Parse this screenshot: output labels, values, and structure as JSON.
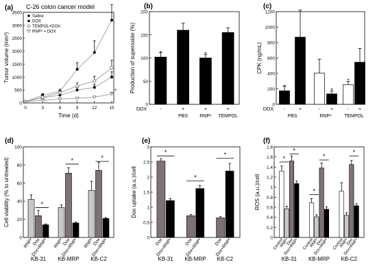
{
  "chart_data": [
    {
      "type": "line",
      "panel": "(a)",
      "title": "C-26 colon cancer model",
      "xlabel": "Time (d)",
      "ylabel": "Tumor volume (mm³)",
      "x": [
        0,
        3,
        6,
        9,
        12,
        15
      ],
      "xlim": [
        0,
        15
      ],
      "ylim": [
        0,
        3500
      ],
      "yticks": [
        0,
        500,
        1000,
        1500,
        2000,
        2500,
        3000,
        3500
      ],
      "series": [
        {
          "name": "Saline",
          "marker": "circle-filled",
          "color": "#000000",
          "values": [
            50,
            300,
            450,
            1300,
            1950,
            3200
          ],
          "errors": [
            20,
            60,
            80,
            260,
            450,
            600
          ]
        },
        {
          "name": "DOX",
          "marker": "circle-filled",
          "color": "#000000",
          "values": [
            50,
            200,
            300,
            500,
            600,
            1000
          ],
          "errors": [
            15,
            40,
            60,
            90,
            120,
            200
          ]
        },
        {
          "name": "TEMPOL+DOX",
          "marker": "diamond-open",
          "color": "#000000",
          "values": [
            50,
            220,
            400,
            650,
            850,
            1350
          ],
          "errors": [
            15,
            50,
            70,
            120,
            180,
            300
          ]
        },
        {
          "name": "RNPⁿ + DOX",
          "marker": "triangle-open",
          "color": "#000000",
          "values": [
            50,
            100,
            150,
            180,
            220,
            350
          ],
          "errors": [
            10,
            20,
            30,
            40,
            50,
            60
          ]
        }
      ],
      "annotations": [
        {
          "text": "*",
          "x": 15,
          "y": 350
        }
      ]
    },
    {
      "type": "bar",
      "panel": "(b)",
      "ylabel": "Production of superoxide (%)",
      "ylim": [
        0,
        200
      ],
      "yticks": [
        0,
        50,
        100,
        150,
        200
      ],
      "dox_label": "DOX",
      "dox_signs": [
        "-",
        "+",
        "+",
        "+"
      ],
      "categories": [
        "",
        "PBS",
        "RNPⁿ",
        "TEMPOL"
      ],
      "values": [
        102,
        160,
        100,
        155
      ],
      "errors": [
        10,
        15,
        8,
        10
      ],
      "colors": [
        "#000000",
        "#000000",
        "#000000",
        "#000000"
      ],
      "stars": [
        "*",
        "",
        "*",
        ""
      ]
    },
    {
      "type": "bar",
      "panel": "(c)",
      "ylabel": "CPK (ng/mL)",
      "ylim": [
        0,
        1200
      ],
      "yticks": [
        0,
        200,
        400,
        600,
        800,
        1000,
        1200
      ],
      "dox_label": "DOX",
      "dox_signs": [
        "-",
        "+",
        "-",
        "+",
        "-",
        "+"
      ],
      "group_labels": [
        "PBS",
        "RNPⁿ",
        "TEMPOL"
      ],
      "values": [
        175,
        870,
        405,
        135,
        255,
        545
      ],
      "errors": [
        60,
        350,
        180,
        40,
        40,
        180
      ],
      "colors": [
        "#000000",
        "#000000",
        "#ffffff",
        "#000000",
        "#ffffff",
        "#000000"
      ],
      "stars": [
        "*",
        "",
        "",
        "*",
        "*",
        ""
      ]
    },
    {
      "type": "bar",
      "panel": "(d)",
      "ylabel": "Cell viability (% to untreated)",
      "ylim": [
        0,
        100
      ],
      "yticks": [
        0,
        20,
        40,
        60,
        80,
        100
      ],
      "bar_labels": [
        "RNPⁿ",
        "Dox",
        "Dox+RNPⁿ"
      ],
      "colors": [
        "#c8c8c8",
        "#7f7277",
        "#000000"
      ],
      "groups": [
        {
          "name": "KB-31",
          "values": [
            42,
            24,
            14
          ],
          "errors": [
            5,
            6,
            1
          ]
        },
        {
          "name": "KB-MRP",
          "values": [
            33,
            71,
            16
          ],
          "errors": [
            3,
            6,
            1
          ]
        },
        {
          "name": "KB-C2",
          "values": [
            52,
            74,
            21
          ],
          "errors": [
            10,
            9,
            1
          ]
        }
      ],
      "comparisons": [
        {
          "group": 0,
          "from": 1,
          "to": 2,
          "y": 33,
          "text": "*"
        },
        {
          "group": 1,
          "from": 1,
          "to": 2,
          "y": 81,
          "text": "*"
        },
        {
          "group": 2,
          "from": 1,
          "to": 2,
          "y": 84,
          "text": "*"
        }
      ]
    },
    {
      "type": "bar",
      "panel": "(e)",
      "ylabel": "Dox uptake (a.u.)/cell",
      "ylim": [
        0,
        3
      ],
      "yticks": [
        0,
        0.5,
        1,
        1.5,
        2,
        2.5,
        3
      ],
      "bar_labels": [
        "Dox",
        "Dox+RNPⁿ"
      ],
      "colors": [
        "#7f7277",
        "#000000"
      ],
      "groups": [
        {
          "name": "KB-31",
          "values": [
            2.53,
            1.22
          ],
          "errors": [
            0.08,
            0.07
          ]
        },
        {
          "name": "KB-MRP",
          "values": [
            0.72,
            1.62
          ],
          "errors": [
            0.04,
            0.1
          ]
        },
        {
          "name": "KB-C2",
          "values": [
            0.65,
            2.2
          ],
          "errors": [
            0.04,
            0.25
          ]
        }
      ],
      "comparisons": [
        {
          "group": 0,
          "from": 0,
          "to": 1,
          "y": 2.7,
          "text": "*"
        },
        {
          "group": 1,
          "from": 0,
          "to": 1,
          "y": 1.87,
          "text": "*"
        },
        {
          "group": 2,
          "from": 0,
          "to": 1,
          "y": 2.62,
          "text": "*"
        }
      ]
    },
    {
      "type": "bar",
      "panel": "(f)",
      "ylabel": "ROS (a.u.)/cell",
      "ylim": [
        0,
        1.8
      ],
      "yticks": [
        0,
        0.2,
        0.4,
        0.6,
        0.8,
        1,
        1.2,
        1.4,
        1.6,
        1.8
      ],
      "bar_labels": [
        "Control",
        "RNPⁿ",
        "Dox",
        "Dox+RNPⁿ"
      ],
      "colors": [
        "#ffffff",
        "#c8c8c8",
        "#7f7277",
        "#000000"
      ],
      "groups": [
        {
          "name": "KB-31",
          "values": [
            1.32,
            0.57,
            1.52,
            1.07
          ],
          "errors": [
            0.1,
            0.05,
            0.1,
            0.05
          ]
        },
        {
          "name": "KB-MRP",
          "values": [
            0.69,
            0.41,
            1.38,
            0.56
          ],
          "errors": [
            0.08,
            0.04,
            0.1,
            0.05
          ]
        },
        {
          "name": "KB-C2",
          "values": [
            0.92,
            0.44,
            1.45,
            0.63
          ],
          "errors": [
            0.17,
            0.05,
            0.08,
            0.04
          ]
        }
      ],
      "comparisons": [
        {
          "group": 0,
          "from": 0,
          "to": 1,
          "y": 1.5,
          "text": "*"
        },
        {
          "group": 0,
          "from": 2,
          "to": 3,
          "y": 1.66,
          "text": "*"
        },
        {
          "group": 1,
          "from": 0,
          "to": 1,
          "y": 0.85,
          "text": "*"
        },
        {
          "group": 1,
          "from": 2,
          "to": 3,
          "y": 1.54,
          "text": "*"
        },
        {
          "group": 2,
          "from": 2,
          "to": 3,
          "y": 1.62,
          "text": "*"
        }
      ]
    }
  ]
}
